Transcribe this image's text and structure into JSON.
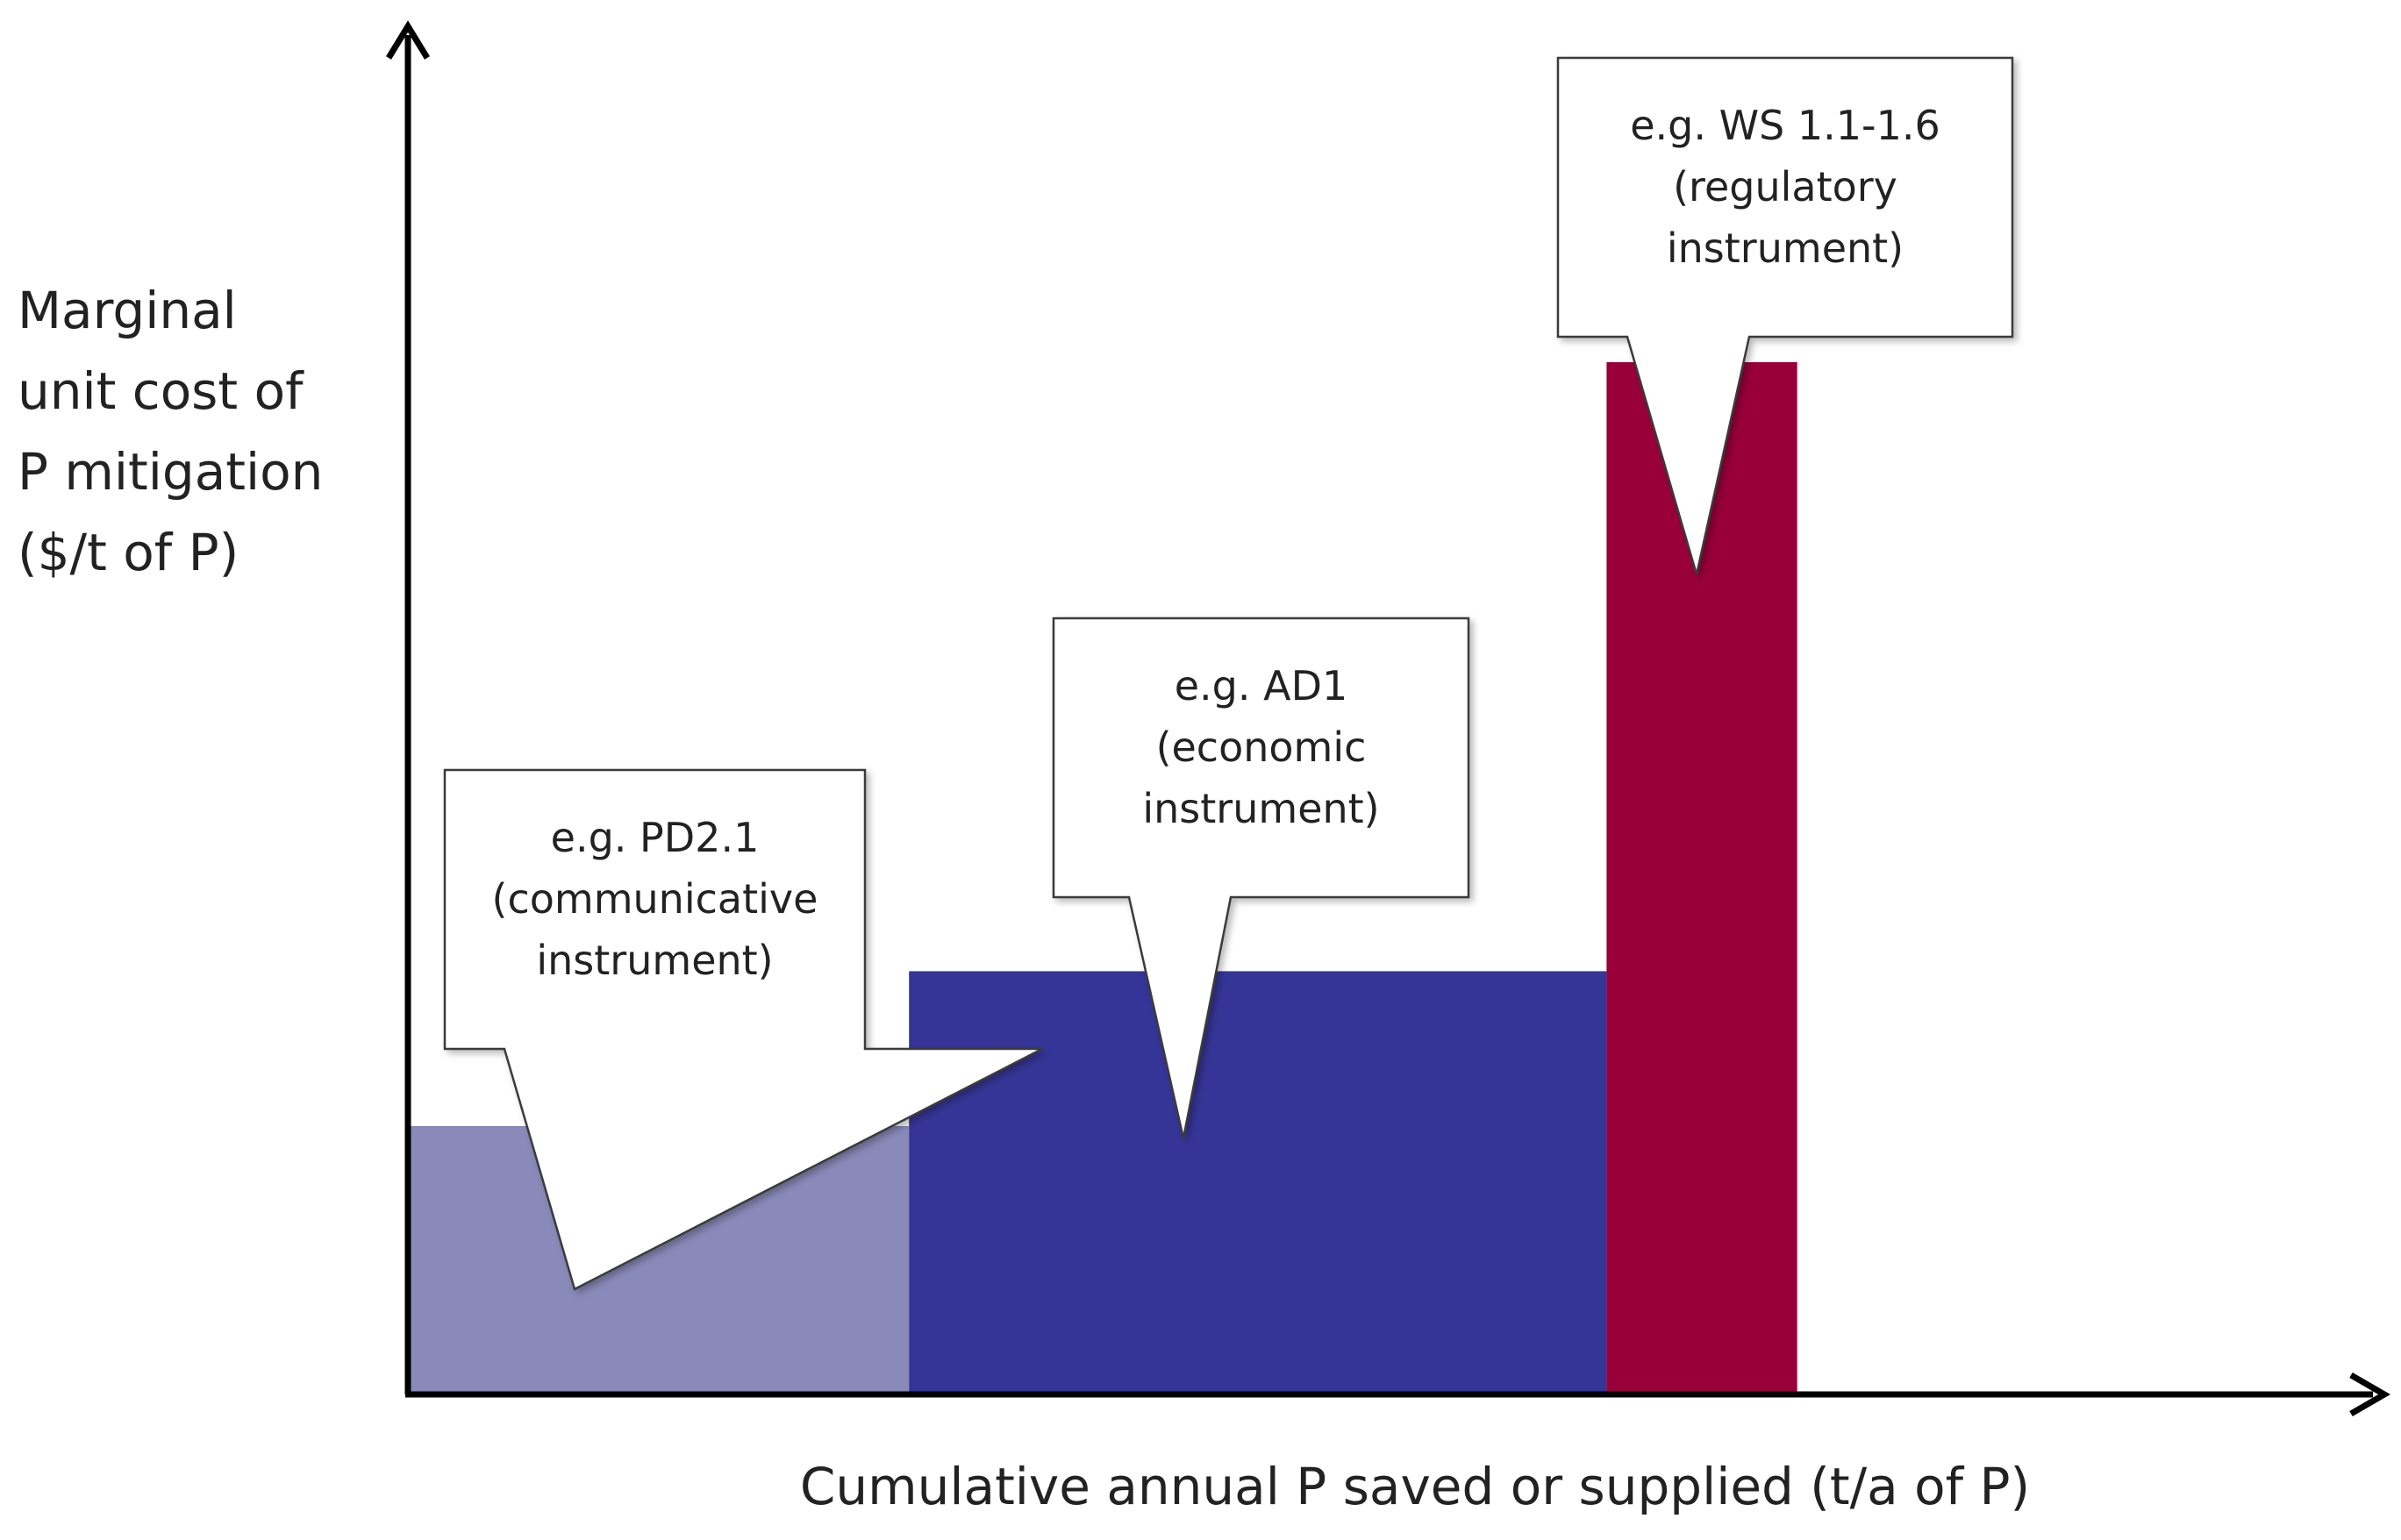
{
  "chart_data": {
    "type": "bar",
    "subtype": "marginal-abatement-cost-curve",
    "title": "",
    "xlabel": "Cumulative annual P saved or supplied (t/a of P)",
    "ylabel_lines": [
      "Marginal",
      "unit cost of",
      "P mitigation",
      "($/t of P)"
    ],
    "xlim": [
      0,
      1
    ],
    "ylim": [
      0,
      1
    ],
    "grid": false,
    "legend": "none",
    "bars": [
      {
        "name": "communicative",
        "x_start": 0.0,
        "x_end": 0.255,
        "value": 0.26,
        "color": "#8a8aba",
        "callout_lines": [
          "e.g. PD2.1",
          "(communicative",
          "instrument)"
        ]
      },
      {
        "name": "economic",
        "x_start": 0.255,
        "x_end": 0.61,
        "value": 0.41,
        "color": "#353597",
        "callout_lines": [
          "e.g. AD1",
          "(economic",
          "instrument)"
        ]
      },
      {
        "name": "regulatory",
        "x_start": 0.61,
        "x_end": 0.707,
        "value": 1.0,
        "color": "#99003a",
        "callout_lines": [
          "e.g. WS 1.1-1.6",
          "(regulatory",
          "instrument)"
        ]
      }
    ]
  }
}
